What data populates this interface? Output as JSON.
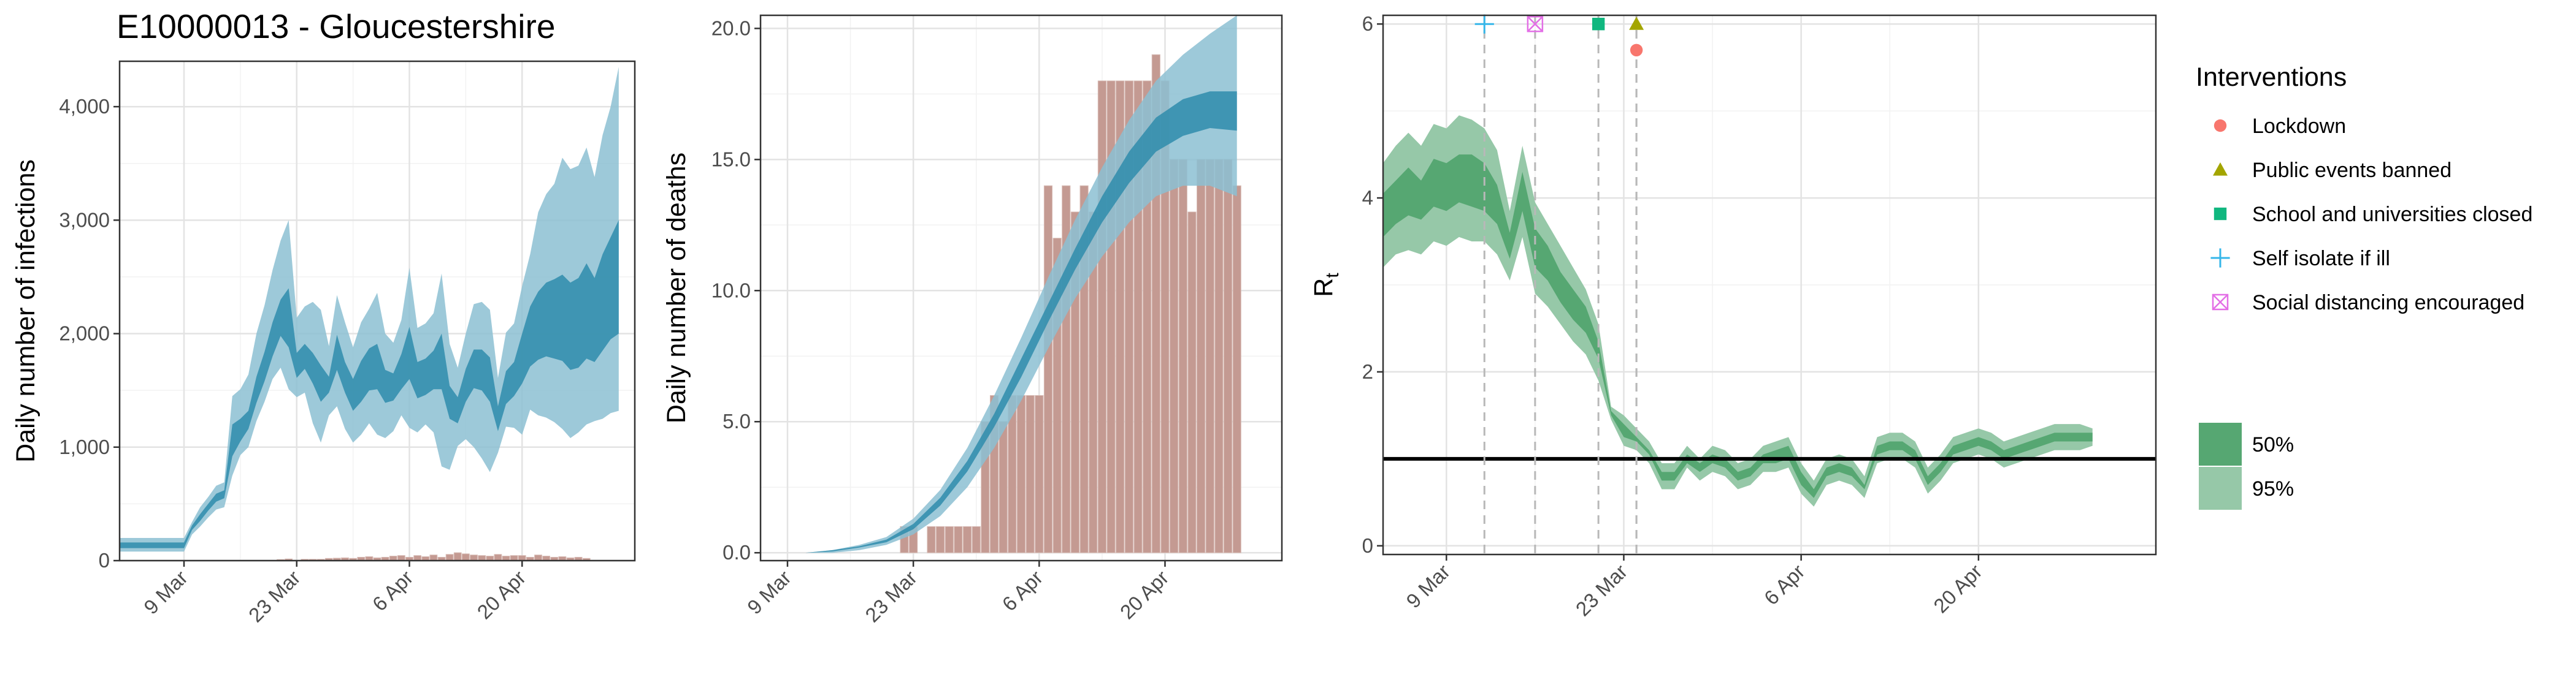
{
  "chart_data": [
    {
      "type": "area",
      "title": "E10000013 - Gloucestershire",
      "xlabel": "",
      "ylabel": "Daily number of infections",
      "x_ticks": [
        "9 Mar",
        "23 Mar",
        "6 Apr",
        "20 Apr"
      ],
      "y_ticks": [
        "0",
        "1,000",
        "2,000",
        "3,000",
        "4,000"
      ],
      "ylim": [
        0,
        4400
      ],
      "grid": true,
      "colors": {
        "band95": "#8cbfd2",
        "band50": "#2f8cab",
        "bars": "#c49a92"
      },
      "x": [
        "1 Mar",
        "2 Mar",
        "3 Mar",
        "4 Mar",
        "5 Mar",
        "6 Mar",
        "7 Mar",
        "8 Mar",
        "9 Mar",
        "10 Mar",
        "11 Mar",
        "12 Mar",
        "13 Mar",
        "14 Mar",
        "15 Mar",
        "16 Mar",
        "17 Mar",
        "18 Mar",
        "19 Mar",
        "20 Mar",
        "21 Mar",
        "22 Mar",
        "23 Mar",
        "24 Mar",
        "25 Mar",
        "26 Mar",
        "27 Mar",
        "28 Mar",
        "29 Mar",
        "30 Mar",
        "31 Mar",
        "1 Apr",
        "2 Apr",
        "3 Apr",
        "4 Apr",
        "5 Apr",
        "6 Apr",
        "7 Apr",
        "8 Apr",
        "9 Apr",
        "10 Apr",
        "11 Apr",
        "12 Apr",
        "13 Apr",
        "14 Apr",
        "15 Apr",
        "16 Apr",
        "17 Apr",
        "18 Apr",
        "19 Apr",
        "20 Apr",
        "21 Apr",
        "22 Apr",
        "23 Apr",
        "24 Apr",
        "25 Apr",
        "26 Apr",
        "27 Apr",
        "28 Apr",
        "29 Apr",
        "30 Apr",
        "1 May",
        "2 May"
      ],
      "series": [
        {
          "name": "95%",
          "low": [
            80,
            80,
            80,
            80,
            80,
            80,
            80,
            80,
            80,
            230,
            300,
            380,
            450,
            470,
            750,
            930,
            1000,
            1230,
            1400,
            1600,
            1700,
            1510,
            1440,
            1480,
            1210,
            1040,
            1280,
            1360,
            1160,
            1040,
            1110,
            1210,
            1110,
            1080,
            1140,
            1280,
            1170,
            1130,
            1200,
            1130,
            830,
            800,
            1010,
            1070,
            1000,
            900,
            780,
            950,
            1180,
            1170,
            1110,
            1330,
            1280,
            1260,
            1220,
            1160,
            1080,
            1130,
            1200,
            1230,
            1250,
            1300,
            1320
          ],
          "high": [
            200,
            200,
            200,
            200,
            200,
            200,
            200,
            200,
            200,
            340,
            470,
            560,
            660,
            690,
            1450,
            1510,
            1640,
            2000,
            2250,
            2560,
            2820,
            3000,
            2140,
            2240,
            2280,
            2210,
            1890,
            2340,
            2100,
            1880,
            2100,
            2220,
            2360,
            2000,
            1920,
            2120,
            2580,
            2050,
            2090,
            2180,
            2530,
            1910,
            1700,
            2000,
            2260,
            2280,
            2210,
            1610,
            2010,
            2090,
            2420,
            2700,
            3070,
            3230,
            3320,
            3550,
            3450,
            3480,
            3640,
            3380,
            3750,
            4000,
            4350
          ]
        },
        {
          "name": "50%",
          "low": [
            110,
            110,
            110,
            110,
            110,
            110,
            110,
            110,
            110,
            270,
            350,
            440,
            520,
            550,
            920,
            1050,
            1160,
            1390,
            1580,
            1800,
            1980,
            1880,
            1610,
            1690,
            1560,
            1400,
            1480,
            1680,
            1480,
            1320,
            1400,
            1500,
            1510,
            1390,
            1410,
            1510,
            1600,
            1430,
            1460,
            1510,
            1510,
            1250,
            1210,
            1400,
            1520,
            1500,
            1400,
            1140,
            1380,
            1450,
            1560,
            1710,
            1770,
            1800,
            1780,
            1760,
            1680,
            1700,
            1780,
            1750,
            1850,
            1950,
            2000
          ],
          "high": [
            160,
            160,
            160,
            160,
            160,
            160,
            160,
            160,
            160,
            310,
            410,
            500,
            590,
            620,
            1200,
            1250,
            1320,
            1620,
            1840,
            2100,
            2300,
            2400,
            1830,
            1910,
            1830,
            1720,
            1620,
            1990,
            1750,
            1600,
            1760,
            1870,
            1910,
            1680,
            1650,
            1820,
            2060,
            1750,
            1780,
            1850,
            2000,
            1540,
            1440,
            1690,
            1860,
            1860,
            1790,
            1360,
            1670,
            1750,
            2000,
            2240,
            2370,
            2450,
            2480,
            2520,
            2450,
            2490,
            2620,
            2490,
            2700,
            2850,
            3000
          ]
        }
      ],
      "bars": {
        "x": [
          "21 Mar",
          "22 Mar",
          "24 Mar",
          "25 Mar",
          "26 Mar",
          "27 Mar",
          "28 Mar",
          "29 Mar",
          "30 Mar",
          "31 Mar",
          "1 Apr",
          "2 Apr",
          "3 Apr",
          "4 Apr",
          "5 Apr",
          "6 Apr",
          "7 Apr",
          "8 Apr",
          "9 Apr",
          "10 Apr",
          "11 Apr",
          "12 Apr",
          "13 Apr",
          "14 Apr",
          "15 Apr",
          "16 Apr",
          "17 Apr",
          "18 Apr",
          "19 Apr",
          "20 Apr",
          "21 Apr",
          "22 Apr",
          "23 Apr",
          "24 Apr",
          "25 Apr",
          "26 Apr",
          "27 Apr",
          "28 Apr"
        ],
        "values": [
          10,
          15,
          12,
          12,
          12,
          20,
          22,
          25,
          20,
          30,
          35,
          25,
          30,
          40,
          45,
          30,
          45,
          35,
          50,
          30,
          55,
          70,
          60,
          50,
          45,
          40,
          55,
          40,
          45,
          45,
          30,
          50,
          40,
          30,
          35,
          25,
          30,
          20
        ]
      }
    },
    {
      "type": "bar",
      "title": "",
      "xlabel": "",
      "ylabel": "Daily number of deaths",
      "x_ticks": [
        "9 Mar",
        "23 Mar",
        "6 Apr",
        "20 Apr"
      ],
      "y_ticks": [
        "0.0",
        "5.0",
        "10.0",
        "15.0",
        "20.0"
      ],
      "ylim": [
        -0.3,
        20.5
      ],
      "grid": true,
      "colors": {
        "band95": "#8cbfd2",
        "band50": "#2f8cab",
        "bars": "#c49a92"
      },
      "bars": {
        "x": [
          "22 Mar",
          "23 Mar",
          "25 Mar",
          "26 Mar",
          "27 Mar",
          "28 Mar",
          "29 Mar",
          "30 Mar",
          "31 Mar",
          "1 Apr",
          "2 Apr",
          "3 Apr",
          "4 Apr",
          "5 Apr",
          "6 Apr",
          "7 Apr",
          "8 Apr",
          "9 Apr",
          "10 Apr",
          "11 Apr",
          "12 Apr",
          "13 Apr",
          "14 Apr",
          "15 Apr",
          "16 Apr",
          "17 Apr",
          "18 Apr",
          "19 Apr",
          "20 Apr",
          "21 Apr",
          "22 Apr",
          "23 Apr",
          "24 Apr",
          "25 Apr",
          "26 Apr",
          "27 Apr",
          "28 Apr"
        ],
        "values": [
          1,
          1,
          1,
          1,
          1,
          1,
          1,
          1,
          5,
          6,
          5,
          6,
          6,
          6,
          6,
          14,
          12,
          14,
          13,
          14,
          13,
          18,
          18,
          18,
          18,
          18,
          18,
          19,
          18,
          15,
          15,
          13,
          15,
          15,
          15,
          15,
          14
        ]
      },
      "series": [
        {
          "name": "95%",
          "x": [
            "8 Mar",
            "11 Mar",
            "14 Mar",
            "17 Mar",
            "20 Mar",
            "23 Mar",
            "26 Mar",
            "29 Mar",
            "1 Apr",
            "4 Apr",
            "7 Apr",
            "10 Apr",
            "13 Apr",
            "16 Apr",
            "19 Apr",
            "22 Apr",
            "25 Apr",
            "28 Apr"
          ],
          "low": [
            0,
            0,
            0,
            0.1,
            0.3,
            0.7,
            1.4,
            2.5,
            4.0,
            5.8,
            7.8,
            9.7,
            11.3,
            12.6,
            13.6,
            14.0,
            14.0,
            13.6
          ],
          "high": [
            0,
            0,
            0.1,
            0.3,
            0.6,
            1.3,
            2.4,
            4.0,
            6.0,
            8.2,
            10.5,
            12.7,
            14.7,
            16.5,
            18.0,
            19.0,
            19.8,
            20.5
          ]
        },
        {
          "name": "50%",
          "x": [
            "8 Mar",
            "11 Mar",
            "14 Mar",
            "17 Mar",
            "20 Mar",
            "23 Mar",
            "26 Mar",
            "29 Mar",
            "1 Apr",
            "4 Apr",
            "7 Apr",
            "10 Apr",
            "13 Apr",
            "16 Apr",
            "19 Apr",
            "22 Apr",
            "25 Apr",
            "28 Apr"
          ],
          "low": [
            0,
            0,
            0.05,
            0.2,
            0.4,
            0.9,
            1.8,
            3.1,
            4.8,
            6.7,
            8.8,
            10.8,
            12.6,
            14.1,
            15.3,
            15.9,
            16.2,
            16.1
          ],
          "high": [
            0,
            0,
            0.1,
            0.25,
            0.5,
            1.1,
            2.1,
            3.5,
            5.3,
            7.4,
            9.5,
            11.6,
            13.6,
            15.3,
            16.6,
            17.3,
            17.6,
            17.6
          ]
        }
      ]
    },
    {
      "type": "line",
      "title": "",
      "xlabel": "",
      "ylabel": "R",
      "ylabel_subscript": "t",
      "x_ticks": [
        "9 Mar",
        "23 Mar",
        "6 Apr",
        "20 Apr"
      ],
      "y_ticks": [
        "0",
        "2",
        "4",
        "6"
      ],
      "ylim": [
        -0.1,
        6.1
      ],
      "grid": true,
      "reference_line": 1,
      "colors": {
        "band95": "#96c8a8",
        "band50": "#56a772",
        "ref": "#000000",
        "vline": "#b8b8b8"
      },
      "x": [
        "4 Mar",
        "5 Mar",
        "6 Mar",
        "7 Mar",
        "8 Mar",
        "9 Mar",
        "10 Mar",
        "11 Mar",
        "12 Mar",
        "13 Mar",
        "14 Mar",
        "15 Mar",
        "16 Mar",
        "17 Mar",
        "18 Mar",
        "19 Mar",
        "20 Mar",
        "21 Mar",
        "22 Mar",
        "23 Mar",
        "24 Mar",
        "25 Mar",
        "26 Mar",
        "27 Mar",
        "28 Mar",
        "29 Mar",
        "30 Mar",
        "31 Mar",
        "1 Apr",
        "2 Apr",
        "3 Apr",
        "4 Apr",
        "5 Apr",
        "6 Apr",
        "7 Apr",
        "8 Apr",
        "9 Apr",
        "10 Apr",
        "11 Apr",
        "12 Apr",
        "13 Apr",
        "14 Apr",
        "15 Apr",
        "16 Apr",
        "17 Apr",
        "18 Apr",
        "19 Apr",
        "20 Apr",
        "21 Apr",
        "22 Apr",
        "23 Apr",
        "24 Apr",
        "25 Apr",
        "26 Apr",
        "27 Apr",
        "28 Apr",
        "29 Apr"
      ],
      "series": [
        {
          "name": "95%",
          "low": [
            3.2,
            3.35,
            3.4,
            3.35,
            3.5,
            3.45,
            3.55,
            3.5,
            3.5,
            3.35,
            3.05,
            3.55,
            2.9,
            2.75,
            2.55,
            2.35,
            2.2,
            1.9,
            1.45,
            1.15,
            1.1,
            0.95,
            0.65,
            0.65,
            0.9,
            0.75,
            0.85,
            0.8,
            0.65,
            0.7,
            0.85,
            0.85,
            0.9,
            0.6,
            0.45,
            0.7,
            0.75,
            0.7,
            0.55,
            0.95,
            1.0,
            1.0,
            0.9,
            0.6,
            0.75,
            0.95,
            1.0,
            1.05,
            1.0,
            0.9,
            0.95,
            1.0,
            1.05,
            1.1,
            1.1,
            1.1,
            1.15
          ],
          "high": [
            4.4,
            4.6,
            4.75,
            4.6,
            4.85,
            4.8,
            4.95,
            4.9,
            4.8,
            4.55,
            3.85,
            4.6,
            3.95,
            3.7,
            3.45,
            3.2,
            2.95,
            2.55,
            1.6,
            1.5,
            1.35,
            1.2,
            0.95,
            0.95,
            1.15,
            1.0,
            1.15,
            1.1,
            0.95,
            1.0,
            1.15,
            1.2,
            1.25,
            0.95,
            0.75,
            1.0,
            1.05,
            1.0,
            0.8,
            1.25,
            1.3,
            1.3,
            1.2,
            0.9,
            1.05,
            1.25,
            1.3,
            1.35,
            1.3,
            1.2,
            1.25,
            1.3,
            1.35,
            1.4,
            1.4,
            1.4,
            1.35
          ]
        },
        {
          "name": "50%",
          "low": [
            3.55,
            3.7,
            3.8,
            3.75,
            3.9,
            3.85,
            3.95,
            3.9,
            3.85,
            3.7,
            3.3,
            3.85,
            3.2,
            3.05,
            2.8,
            2.6,
            2.45,
            2.15,
            1.5,
            1.25,
            1.2,
            1.05,
            0.75,
            0.75,
            0.95,
            0.85,
            0.95,
            0.9,
            0.75,
            0.8,
            0.95,
            0.95,
            1.0,
            0.7,
            0.55,
            0.8,
            0.85,
            0.8,
            0.65,
            1.05,
            1.1,
            1.1,
            1.0,
            0.7,
            0.85,
            1.05,
            1.1,
            1.15,
            1.1,
            1.0,
            1.05,
            1.1,
            1.15,
            1.2,
            1.2,
            1.2,
            1.2
          ],
          "high": [
            4.05,
            4.2,
            4.35,
            4.2,
            4.45,
            4.4,
            4.5,
            4.5,
            4.4,
            4.15,
            3.6,
            4.3,
            3.65,
            3.45,
            3.15,
            2.95,
            2.75,
            2.35,
            1.55,
            1.4,
            1.25,
            1.1,
            0.85,
            0.85,
            1.05,
            0.95,
            1.05,
            1.0,
            0.85,
            0.9,
            1.05,
            1.1,
            1.15,
            0.85,
            0.65,
            0.9,
            0.95,
            0.9,
            0.7,
            1.15,
            1.2,
            1.2,
            1.1,
            0.8,
            0.95,
            1.15,
            1.2,
            1.25,
            1.2,
            1.1,
            1.15,
            1.2,
            1.25,
            1.3,
            1.3,
            1.3,
            1.3
          ]
        }
      ],
      "interventions": [
        {
          "name": "Self isolate if ill",
          "date": "12 Mar",
          "marker": "plus",
          "color": "#35b6e9",
          "y": 6.0
        },
        {
          "name": "Social distancing encouraged",
          "date": "16 Mar",
          "marker": "boxx",
          "color": "#e36fe6",
          "y": 6.0
        },
        {
          "name": "School and universities closed",
          "date": "21 Mar",
          "marker": "square",
          "color": "#10b77f",
          "y": 6.0
        },
        {
          "name": "Public events banned",
          "date": "24 Mar",
          "marker": "triangle",
          "color": "#a3a500",
          "y": 6.0
        },
        {
          "name": "Lockdown",
          "date": "24 Mar",
          "marker": "circle",
          "color": "#f8766d",
          "y": 5.7
        }
      ]
    }
  ],
  "legend": {
    "title": "Interventions",
    "items": [
      {
        "label": "Lockdown",
        "marker": "circle",
        "color": "#f8766d"
      },
      {
        "label": "Public events banned",
        "marker": "triangle",
        "color": "#a3a500"
      },
      {
        "label": "School and universities closed",
        "marker": "square",
        "color": "#10b77f"
      },
      {
        "label": "Self isolate if ill",
        "marker": "plus",
        "color": "#35b6e9"
      },
      {
        "label": "Social distancing encouraged",
        "marker": "boxx",
        "color": "#e36fe6"
      }
    ],
    "bands": [
      {
        "label": "50%",
        "color": "#56a772"
      },
      {
        "label": "95%",
        "color": "#96c8a8"
      }
    ]
  }
}
